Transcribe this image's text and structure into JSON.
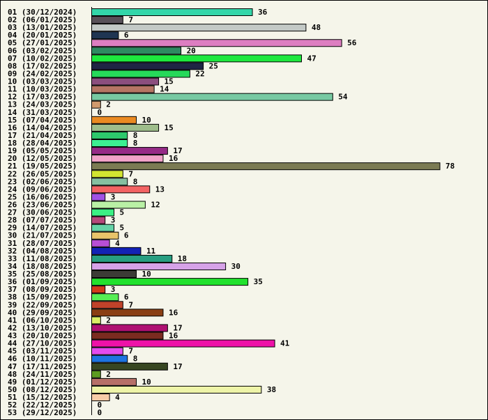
{
  "chart_data": {
    "type": "bar",
    "orientation": "horizontal",
    "categories": [
      "01 (30/12/2024)",
      "02 (06/01/2025)",
      "03 (13/01/2025)",
      "04 (20/01/2025)",
      "05 (27/01/2025)",
      "06 (03/02/2025)",
      "07 (10/02/2025)",
      "08 (17/02/2025)",
      "09 (24/02/2025)",
      "10 (03/03/2025)",
      "11 (10/03/2025)",
      "12 (17/03/2025)",
      "13 (24/03/2025)",
      "14 (31/03/2025)",
      "15 (07/04/2025)",
      "16 (14/04/2025)",
      "17 (21/04/2025)",
      "18 (28/04/2025)",
      "19 (05/05/2025)",
      "20 (12/05/2025)",
      "21 (19/05/2025)",
      "22 (26/05/2025)",
      "23 (02/06/2025)",
      "24 (09/06/2025)",
      "25 (16/06/2025)",
      "26 (23/06/2025)",
      "27 (30/06/2025)",
      "28 (07/07/2025)",
      "29 (14/07/2025)",
      "30 (21/07/2025)",
      "31 (28/07/2025)",
      "32 (04/08/2025)",
      "33 (11/08/2025)",
      "34 (18/08/2025)",
      "35 (25/08/2025)",
      "36 (01/09/2025)",
      "37 (08/09/2025)",
      "38 (15/09/2025)",
      "39 (22/09/2025)",
      "40 (29/09/2025)",
      "41 (06/10/2025)",
      "42 (13/10/2025)",
      "43 (20/10/2025)",
      "44 (27/10/2025)",
      "45 (03/11/2025)",
      "46 (10/11/2025)",
      "47 (17/11/2025)",
      "48 (24/11/2025)",
      "49 (01/12/2025)",
      "50 (08/12/2025)",
      "51 (15/12/2025)",
      "52 (22/12/2025)",
      "53 (29/12/2025)"
    ],
    "values": [
      36,
      7,
      48,
      6,
      56,
      20,
      47,
      25,
      22,
      15,
      14,
      54,
      2,
      0,
      10,
      15,
      8,
      8,
      17,
      16,
      78,
      7,
      8,
      13,
      3,
      12,
      5,
      3,
      5,
      6,
      4,
      11,
      18,
      30,
      10,
      35,
      3,
      6,
      7,
      16,
      2,
      17,
      16,
      41,
      7,
      8,
      17,
      2,
      10,
      38,
      4,
      0,
      0
    ],
    "colors": [
      "#33d6a9",
      "#585058",
      "#c3c9c6",
      "#1f3552",
      "#dd7ec1",
      "#2e8a61",
      "#1ee83e",
      "#1f2444",
      "#26d95a",
      "#8b4e7e",
      "#b57564",
      "#77c9a2",
      "#d19a6e",
      "#ffffff",
      "#ea8a22",
      "#9ebd8b",
      "#2dc86c",
      "#3cef92",
      "#952a86",
      "#f0a2c8",
      "#7b7b53",
      "#d2e431",
      "#86c0a1",
      "#f36363",
      "#a052e4",
      "#b9f0a5",
      "#3bf084",
      "#b5487b",
      "#65d3a6",
      "#e9c46a",
      "#b94fd6",
      "#1322b5",
      "#279e81",
      "#d6a2e8",
      "#3c3c36",
      "#21e12d",
      "#d13b1b",
      "#56ee54",
      "#c0422a",
      "#8a3f14",
      "#dbf067",
      "#af1172",
      "#7b2b20",
      "#ee12a8",
      "#e44bef",
      "#1e74e1",
      "#374621",
      "#5c9b21",
      "#b67068",
      "#eef4a8",
      "#f8cca8",
      "#e0e0e0",
      "#e0e0e0"
    ],
    "xlim": [
      0,
      78
    ],
    "grid": false,
    "legend": "none",
    "title": "",
    "xlabel": "",
    "ylabel": ""
  }
}
